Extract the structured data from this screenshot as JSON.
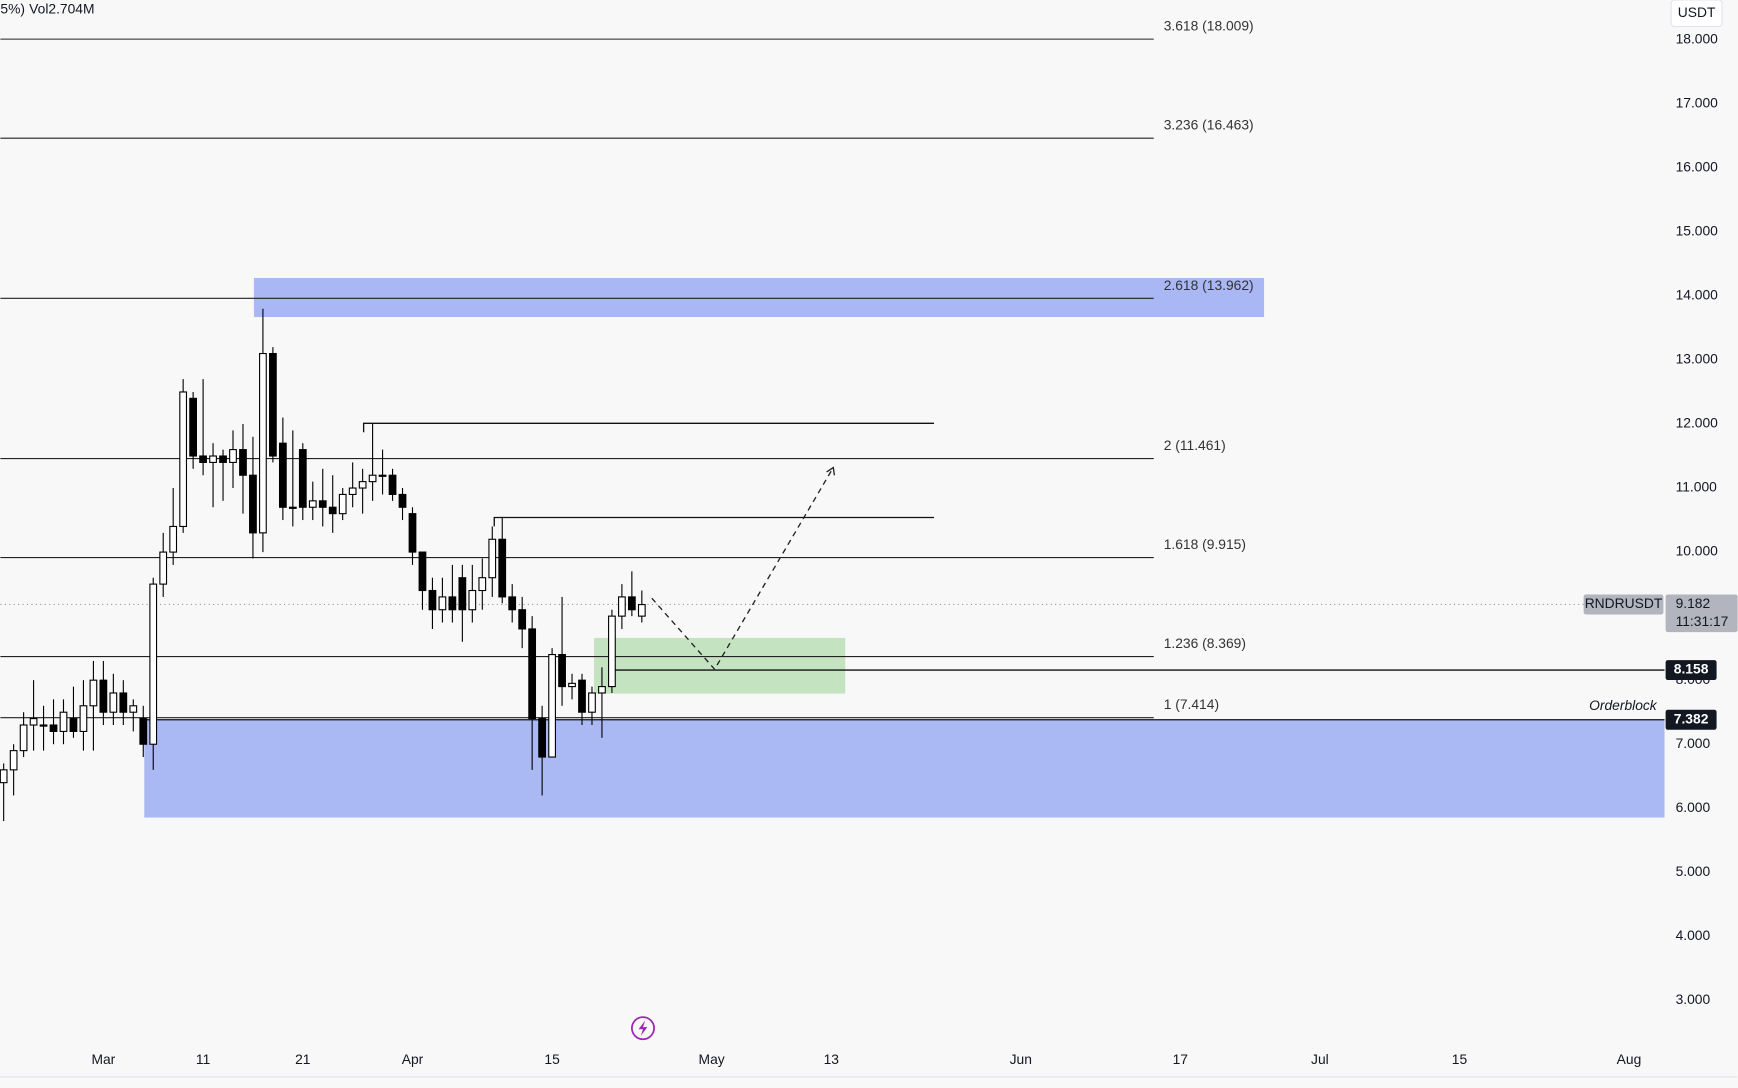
{
  "chart_data": {
    "type": "candlestick",
    "symbol": "RNDRUSDT",
    "currency": "USDT",
    "header": {
      "change": "5%)",
      "volume": "Vol2.704M"
    },
    "x": [
      -10,
      -9,
      -8,
      -7,
      -6,
      -5,
      -4,
      -3,
      -2,
      -1,
      0,
      1,
      2,
      3,
      4,
      5,
      6,
      7,
      8,
      9,
      10,
      11,
      12,
      13,
      14,
      15,
      16,
      17,
      18,
      19,
      20,
      21,
      22,
      23,
      24,
      25,
      26,
      27,
      28,
      29,
      30,
      31,
      32,
      33,
      34,
      35,
      36,
      37,
      38,
      39,
      40,
      41,
      42,
      43,
      44,
      45,
      46,
      47,
      48,
      49,
      50,
      51,
      52,
      53,
      54
    ],
    "open": [
      6.4,
      6.6,
      6.9,
      7.3,
      7.3,
      7.3,
      7.2,
      7.4,
      7.2,
      7.6,
      8.0,
      7.5,
      7.8,
      7.5,
      7.4,
      7.0,
      9.5,
      10.0,
      10.4,
      12.4,
      11.5,
      11.4,
      11.5,
      11.4,
      11.6,
      11.2,
      10.3,
      13.1,
      11.7,
      10.7,
      11.6,
      10.7,
      10.8,
      10.7,
      10.6,
      10.9,
      11.0,
      11.1,
      11.2,
      11.2,
      10.9,
      10.6,
      10.0,
      9.4,
      9.1,
      9.3,
      9.6,
      9.1,
      9.4,
      9.6,
      10.2,
      9.3,
      9.1,
      8.8,
      7.4,
      6.8,
      8.4,
      7.9,
      8.0,
      7.5,
      7.8,
      7.9,
      9.0,
      9.3,
      9.0
    ],
    "high": [
      6.7,
      7.0,
      7.5,
      8.0,
      7.6,
      7.7,
      7.7,
      7.9,
      8.0,
      8.3,
      8.3,
      8.1,
      8.0,
      7.7,
      7.6,
      9.6,
      10.3,
      11.0,
      12.7,
      12.5,
      12.7,
      11.7,
      11.6,
      11.9,
      12.0,
      11.8,
      13.8,
      13.2,
      12.1,
      11.9,
      11.7,
      11.1,
      11.3,
      11.2,
      11.0,
      11.4,
      11.3,
      12.0,
      11.6,
      11.3,
      11.0,
      10.7,
      10.0,
      9.6,
      9.6,
      9.8,
      9.8,
      9.8,
      9.9,
      10.4,
      10.55,
      9.5,
      9.3,
      9.0,
      7.6,
      8.5,
      9.3,
      8.1,
      8.1,
      7.9,
      8.2,
      9.1,
      9.5,
      9.7,
      9.4
    ],
    "low": [
      5.8,
      6.2,
      6.8,
      6.9,
      6.9,
      7.0,
      7.0,
      7.1,
      6.9,
      6.9,
      7.3,
      7.3,
      7.3,
      7.2,
      6.8,
      6.6,
      9.3,
      9.8,
      10.3,
      11.3,
      11.2,
      10.7,
      10.8,
      11.0,
      10.6,
      9.9,
      10.0,
      11.4,
      10.5,
      10.4,
      10.5,
      10.5,
      10.4,
      10.3,
      10.5,
      10.7,
      10.6,
      10.8,
      10.9,
      10.8,
      10.5,
      9.8,
      9.1,
      8.8,
      8.9,
      8.9,
      8.6,
      8.9,
      9.1,
      9.3,
      9.2,
      8.9,
      8.5,
      6.6,
      6.2,
      6.8,
      7.6,
      7.7,
      7.3,
      7.3,
      7.1,
      7.8,
      8.8,
      9.0,
      8.9
    ],
    "close": [
      6.6,
      6.9,
      7.3,
      7.4,
      7.3,
      7.2,
      7.5,
      7.2,
      7.6,
      8.0,
      7.5,
      7.8,
      7.5,
      7.6,
      7.0,
      9.5,
      10.0,
      10.4,
      12.5,
      11.5,
      11.4,
      11.5,
      11.4,
      11.6,
      11.2,
      10.3,
      13.1,
      11.5,
      10.7,
      10.7,
      10.7,
      10.8,
      10.7,
      10.6,
      10.9,
      11.0,
      11.1,
      11.2,
      11.2,
      10.9,
      10.7,
      10.0,
      9.4,
      9.1,
      9.3,
      9.1,
      9.1,
      9.4,
      9.6,
      10.2,
      9.3,
      9.1,
      8.8,
      7.4,
      6.8,
      8.4,
      7.9,
      7.95,
      7.5,
      7.8,
      7.9,
      9.0,
      9.3,
      9.1,
      9.18
    ],
    "xlim": [
      -10.33,
      156.56
    ],
    "ylim": [
      1.84,
      18.62
    ],
    "xticks": [
      {
        "value": 0,
        "label": "Mar"
      },
      {
        "value": 10,
        "label": "11"
      },
      {
        "value": 20,
        "label": "21"
      },
      {
        "value": 31,
        "label": "Apr"
      },
      {
        "value": 45,
        "label": "15"
      },
      {
        "value": 61,
        "label": "May"
      },
      {
        "value": 73,
        "label": "13"
      },
      {
        "value": 92,
        "label": "Jun"
      },
      {
        "value": 108,
        "label": "17"
      },
      {
        "value": 122,
        "label": "Jul"
      },
      {
        "value": 136,
        "label": "15"
      },
      {
        "value": 153,
        "label": "Aug"
      }
    ],
    "yticks": [
      {
        "value": 3,
        "label": "3.000"
      },
      {
        "value": 4,
        "label": "4.000"
      },
      {
        "value": 5,
        "label": "5.000"
      },
      {
        "value": 6,
        "label": "6.000"
      },
      {
        "value": 7,
        "label": "7.000"
      },
      {
        "value": 8,
        "label": "8.000"
      },
      {
        "value": 9,
        "label": "9.000"
      },
      {
        "value": 10,
        "label": "10.000"
      },
      {
        "value": 11,
        "label": "11.000"
      },
      {
        "value": 12,
        "label": "12.000"
      },
      {
        "value": 13,
        "label": "13.000"
      },
      {
        "value": 14,
        "label": "14.000"
      },
      {
        "value": 15,
        "label": "15.000"
      },
      {
        "value": 16,
        "label": "16.000"
      },
      {
        "value": 17,
        "label": "17.000"
      },
      {
        "value": 18,
        "label": "18.000"
      }
    ],
    "grid": false,
    "up_color": "#ffffff",
    "down_color": "#000000",
    "fib_levels": [
      {
        "label": "3.618 (18.009)",
        "value": 18.009
      },
      {
        "label": "3.236 (16.463)",
        "value": 16.463
      },
      {
        "label": "2.618 (13.962)",
        "value": 13.962
      },
      {
        "label": "2 (11.461)",
        "value": 11.461
      },
      {
        "label": "1.618 (9.915)",
        "value": 9.915
      },
      {
        "label": "1.236 (8.369)",
        "value": 8.369
      },
      {
        "label": "1 (7.414)",
        "value": 7.414
      }
    ],
    "zones": [
      {
        "x": [
          15.1,
          116.4
        ],
        "y": [
          13.67,
          14.28
        ],
        "color": "#a9b8f5"
      },
      {
        "x": [
          4.1,
          156.56
        ],
        "y": [
          5.855,
          7.382
        ],
        "color": "#aab9f4"
      },
      {
        "x": [
          49.2,
          74.4
        ],
        "y": [
          7.79,
          8.66
        ],
        "color": "#c4e3c0"
      }
    ],
    "levels": [
      {
        "value": 12.01,
        "x": [
          26.1,
          83.3
        ]
      },
      {
        "value": 10.54,
        "x": [
          39.2,
          83.3
        ]
      }
    ],
    "price_lines": [
      {
        "value": 8.158,
        "x": [
          50.7,
          156.56
        ]
      },
      {
        "value": 7.382,
        "x": [
          4.1,
          156.56
        ]
      }
    ],
    "zone_label": "Orderblock",
    "last_price": 9.182,
    "countdown": "11:31:17",
    "projection": {
      "x": [
        55,
        61.3,
        73.2
      ],
      "y": [
        9.28,
        8.17,
        11.32
      ]
    }
  }
}
